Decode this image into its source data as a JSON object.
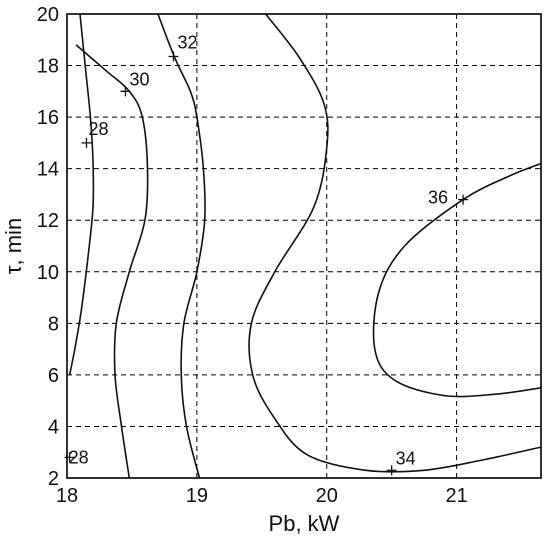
{
  "chart_data": {
    "type": "contour",
    "xlabel": "Pb, kW",
    "ylabel": "τ, min",
    "xlim": [
      18,
      21.65
    ],
    "ylim": [
      2,
      20
    ],
    "xticks": [
      18,
      19,
      20,
      21
    ],
    "yticks": [
      2,
      4,
      6,
      8,
      10,
      12,
      14,
      16,
      18,
      20
    ],
    "grid": true,
    "contours": [
      {
        "level": "28",
        "points": [
          [
            18.1,
            20
          ],
          [
            18.14,
            18
          ],
          [
            18.18,
            16
          ],
          [
            18.2,
            14.3
          ],
          [
            18.2,
            12.5
          ],
          [
            18.16,
            10.5
          ],
          [
            18.11,
            8.5
          ],
          [
            18.06,
            7
          ],
          [
            18.02,
            6
          ]
        ]
      },
      {
        "level": "30",
        "points": [
          [
            18.07,
            18.8
          ],
          [
            18.3,
            17.8
          ],
          [
            18.48,
            17
          ],
          [
            18.58,
            16
          ],
          [
            18.62,
            14
          ],
          [
            18.6,
            12
          ],
          [
            18.48,
            10
          ],
          [
            18.38,
            8
          ],
          [
            18.37,
            6
          ],
          [
            18.42,
            4
          ],
          [
            18.48,
            2
          ]
        ]
      },
      {
        "level": "32",
        "points": [
          [
            18.7,
            20
          ],
          [
            18.83,
            18.3
          ],
          [
            18.95,
            17
          ],
          [
            19.0,
            16
          ],
          [
            19.05,
            14
          ],
          [
            19.06,
            12
          ],
          [
            19.0,
            10
          ],
          [
            18.9,
            8
          ],
          [
            18.88,
            6
          ],
          [
            18.92,
            4
          ],
          [
            19.02,
            2
          ]
        ]
      },
      {
        "level": "",
        "points": [
          [
            19.53,
            20
          ],
          [
            19.79,
            18.3
          ],
          [
            19.98,
            16.5
          ],
          [
            20.0,
            14.8
          ],
          [
            19.9,
            12.5
          ],
          [
            19.6,
            10
          ],
          [
            19.42,
            8
          ],
          [
            19.43,
            6
          ],
          [
            19.6,
            4.3
          ],
          [
            19.85,
            2.9
          ],
          [
            20.3,
            2.3
          ],
          [
            20.75,
            2.3
          ],
          [
            21.2,
            2.7
          ],
          [
            21.65,
            3.2
          ]
        ]
      },
      {
        "level": "36",
        "points": [
          [
            21.65,
            14.2
          ],
          [
            21.4,
            13.7
          ],
          [
            21.05,
            12.8
          ],
          [
            20.6,
            11
          ],
          [
            20.4,
            9.2
          ],
          [
            20.37,
            7
          ],
          [
            20.52,
            5.8
          ],
          [
            20.9,
            5.2
          ],
          [
            21.3,
            5.25
          ],
          [
            21.65,
            5.5
          ]
        ]
      }
    ],
    "markers": [
      {
        "label": "28",
        "x": 18.15,
        "y": 15
      },
      {
        "label": "30",
        "x": 18.45,
        "y": 17
      },
      {
        "label": "32",
        "x": 18.82,
        "y": 18.35
      },
      {
        "label": "36",
        "x": 21.05,
        "y": 12.8
      },
      {
        "label": "34",
        "x": 20.5,
        "y": 2.3
      },
      {
        "label": "28",
        "x": 18.02,
        "y": 2.8
      }
    ]
  }
}
